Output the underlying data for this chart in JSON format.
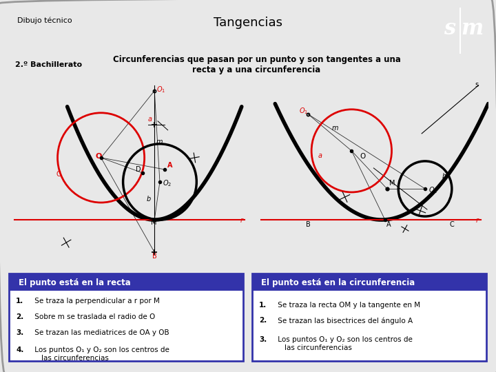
{
  "title": "Tangencias",
  "subtitle_label": "Dibujo técnico",
  "subtitle_grade": "2.º Bachillerato",
  "subtitle_text": "Circunferencias que pasan por un punto y son tangentes a una\nrecta y a una circunferencia",
  "bg_color": "#e8e8e8",
  "header_bg": "#e8c800",
  "subtitle_bg": "#70b8e0",
  "sm_red": "#cc2222",
  "left_box_title": "El punto está en la recta",
  "right_box_title": "El punto está en la circunferencia",
  "left_steps": [
    "1. Se traza la perpendicular a r por M",
    "2. Sobre m se traslada el radio de O",
    "3. Se trazan las mediatrices de OA y OB",
    "4. Los puntos O₁ y O₂ son los centros de\n    las circunferencias"
  ],
  "right_steps": [
    "1. Se traza la recta OM y la tangente en M",
    "2. Se trazan las bisectrices del ángulo A",
    "3. Los puntos O₁ y O₂ son los centros de\n    las circunferencias"
  ],
  "box_title_bg": "#3333aa",
  "box_title_color": "#ffffff",
  "box_bg": "#ffffff",
  "box_border": "#3333aa"
}
